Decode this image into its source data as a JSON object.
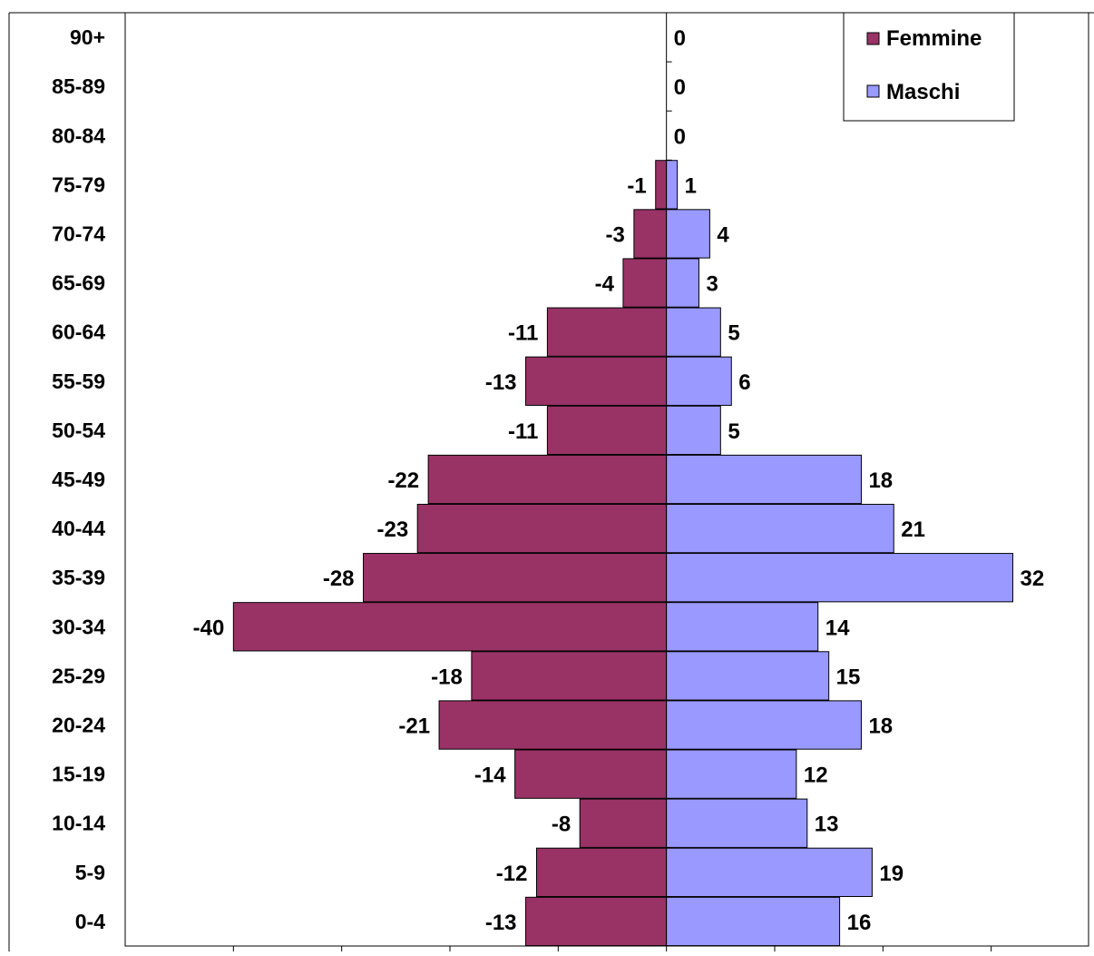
{
  "chart_data": {
    "type": "bar",
    "orientation": "horizontal",
    "stacked": "diverging",
    "categories": [
      "0-4",
      "5-9",
      "10-14",
      "15-19",
      "20-24",
      "25-29",
      "30-34",
      "35-39",
      "40-44",
      "45-49",
      "50-54",
      "55-59",
      "60-64",
      "65-69",
      "70-74",
      "75-79",
      "80-84",
      "85-89",
      "90+"
    ],
    "series": [
      {
        "name": "Femmine",
        "color": "#993366",
        "values": [
          -13,
          -12,
          -8,
          -14,
          -21,
          -18,
          -40,
          -28,
          -23,
          -22,
          -11,
          -13,
          -11,
          -4,
          -3,
          -1,
          0,
          0,
          0
        ],
        "labels": [
          "-13",
          "-12",
          "-8",
          "-14",
          "-21",
          "-18",
          "-40",
          "-28",
          "-23",
          "-22",
          "-11",
          "-13",
          "-11",
          "-4",
          "-3",
          "-1",
          "",
          "",
          ""
        ]
      },
      {
        "name": "Maschi",
        "color": "#9999ff",
        "values": [
          16,
          19,
          13,
          12,
          18,
          15,
          14,
          32,
          21,
          18,
          5,
          6,
          5,
          3,
          4,
          1,
          0,
          0,
          0
        ],
        "labels": [
          "16",
          "19",
          "13",
          "12",
          "18",
          "15",
          "14",
          "32",
          "21",
          "18",
          "5",
          "6",
          "5",
          "3",
          "4",
          "1",
          "0",
          "0",
          "0"
        ]
      }
    ],
    "xlim": [
      -50,
      40
    ],
    "x_tick_step": 10,
    "legend_position": "top-right",
    "grid": false,
    "title": "",
    "xlabel": "",
    "ylabel": ""
  }
}
